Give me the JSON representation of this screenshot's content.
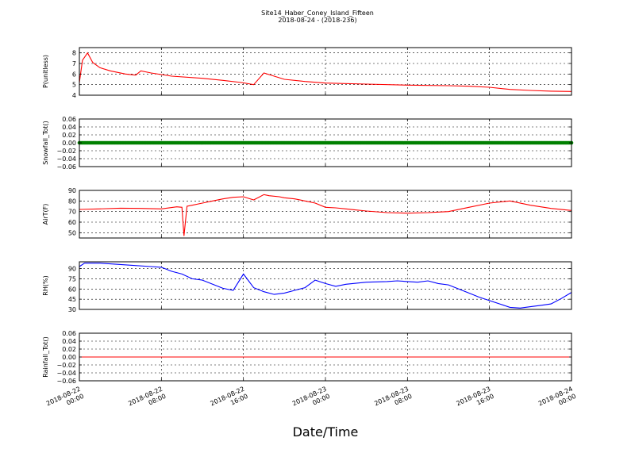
{
  "figure": {
    "title_line1": "Site14_Haber_Coney_Island_Fifteen",
    "title_line2": "2018-08-24 - (2018-236)",
    "xlabel": "Date/Time"
  },
  "chart_data": [
    {
      "type": "line",
      "ylabel": "P(unitless)",
      "ylim": [
        4,
        8.5
      ],
      "yticks": [
        4,
        5,
        6,
        7,
        8
      ],
      "ytick_labels": [
        "4",
        "5",
        "6",
        "7",
        "8"
      ],
      "color": "#ff0000",
      "grid": true,
      "x_hours": [
        0,
        0.3,
        0.8,
        1.3,
        2,
        3,
        4.5,
        5.5,
        6,
        7,
        9,
        12,
        14,
        15.8,
        17,
        18,
        20,
        22,
        24,
        28,
        32,
        36,
        38,
        40,
        42,
        44,
        46,
        48
      ],
      "values": [
        5.2,
        7.3,
        8.0,
        7.1,
        6.6,
        6.3,
        6.0,
        5.9,
        6.3,
        6.1,
        5.8,
        5.6,
        5.4,
        5.2,
        5.0,
        6.1,
        5.5,
        5.3,
        5.15,
        5.05,
        4.95,
        4.9,
        4.85,
        4.75,
        4.55,
        4.45,
        4.38,
        4.35
      ]
    },
    {
      "type": "scatter",
      "ylabel": "Snowfall_Tot()",
      "ylim": [
        -0.06,
        0.06
      ],
      "yticks": [
        -0.06,
        -0.04,
        -0.02,
        0.0,
        0.02,
        0.04,
        0.06
      ],
      "ytick_labels": [
        "−0.06",
        "−0.04",
        "−0.02",
        "0.00",
        "0.02",
        "0.04",
        "0.06"
      ],
      "color": "#008000",
      "grid": true,
      "x_hours": [
        0,
        48
      ],
      "values": [
        0,
        0
      ]
    },
    {
      "type": "line",
      "ylabel": "AirT(F)",
      "ylim": [
        45,
        90
      ],
      "yticks": [
        50,
        60,
        70,
        80,
        90
      ],
      "ytick_labels": [
        "50",
        "60",
        "70",
        "80",
        "90"
      ],
      "color": "#ff0000",
      "grid": true,
      "x_hours": [
        0,
        2,
        4,
        6,
        8,
        9.5,
        10,
        10.2,
        10.5,
        11,
        12,
        13,
        14,
        15,
        16,
        17,
        18,
        18.5,
        19.5,
        20,
        21,
        22,
        23,
        24,
        25,
        26,
        27,
        28,
        30,
        32,
        34,
        36,
        38,
        40,
        42,
        44,
        46,
        48
      ],
      "values": [
        72,
        72.5,
        73.2,
        73,
        72.5,
        74.5,
        74,
        47,
        75,
        76,
        78,
        80,
        82,
        83.5,
        84,
        81,
        86,
        85,
        84,
        83,
        82,
        80,
        78,
        74,
        73.5,
        72.5,
        71.5,
        70.5,
        69,
        68.5,
        69,
        70,
        74,
        78,
        80,
        76,
        73,
        71
      ]
    },
    {
      "type": "line",
      "ylabel": "RH(%)",
      "ylim": [
        30,
        100
      ],
      "yticks": [
        30,
        45,
        60,
        75,
        90
      ],
      "ytick_labels": [
        "30",
        "45",
        "60",
        "75",
        "90"
      ],
      "color": "#0000ff",
      "grid": true,
      "x_hours": [
        0,
        0.5,
        2,
        3,
        5,
        7,
        8,
        9,
        10,
        11,
        12,
        13,
        14,
        15,
        16,
        17,
        18,
        19,
        20,
        21,
        22,
        23,
        24,
        25,
        26,
        28,
        30,
        31,
        32,
        33,
        34,
        35,
        36,
        37,
        38,
        39,
        40,
        41,
        42,
        43,
        44,
        45,
        46,
        47,
        48
      ],
      "values": [
        93,
        98,
        98,
        97,
        95,
        93,
        92,
        86,
        82,
        75,
        73,
        67,
        61,
        58,
        82,
        62,
        56,
        52,
        54,
        58,
        62,
        73,
        68,
        64,
        67,
        70,
        71,
        72,
        71,
        70,
        72,
        68,
        66,
        60,
        54,
        48,
        43,
        38,
        33,
        32,
        34,
        36,
        38,
        46,
        55
      ]
    },
    {
      "type": "line",
      "ylabel": "Rainfall_Tot()",
      "ylim": [
        -0.06,
        0.06
      ],
      "yticks": [
        -0.06,
        -0.04,
        -0.02,
        0.0,
        0.02,
        0.04,
        0.06
      ],
      "ytick_labels": [
        "−0.06",
        "−0.04",
        "−0.02",
        "0.00",
        "0.02",
        "0.04",
        "0.06"
      ],
      "color": "#ff0000",
      "grid": true,
      "x_hours": [
        0,
        48
      ],
      "values": [
        0,
        0
      ]
    }
  ],
  "x_axis": {
    "range_hours": [
      0,
      48
    ],
    "ticks_hours": [
      0,
      8,
      16,
      24,
      32,
      40,
      48
    ],
    "tick_labels": [
      [
        "2018-08-22",
        "00:00"
      ],
      [
        "2018-08-22",
        "08:00"
      ],
      [
        "2018-08-22",
        "16:00"
      ],
      [
        "2018-08-23",
        "00:00"
      ],
      [
        "2018-08-23",
        "08:00"
      ],
      [
        "2018-08-23",
        "16:00"
      ],
      [
        "2018-08-24",
        "00:00"
      ]
    ]
  }
}
